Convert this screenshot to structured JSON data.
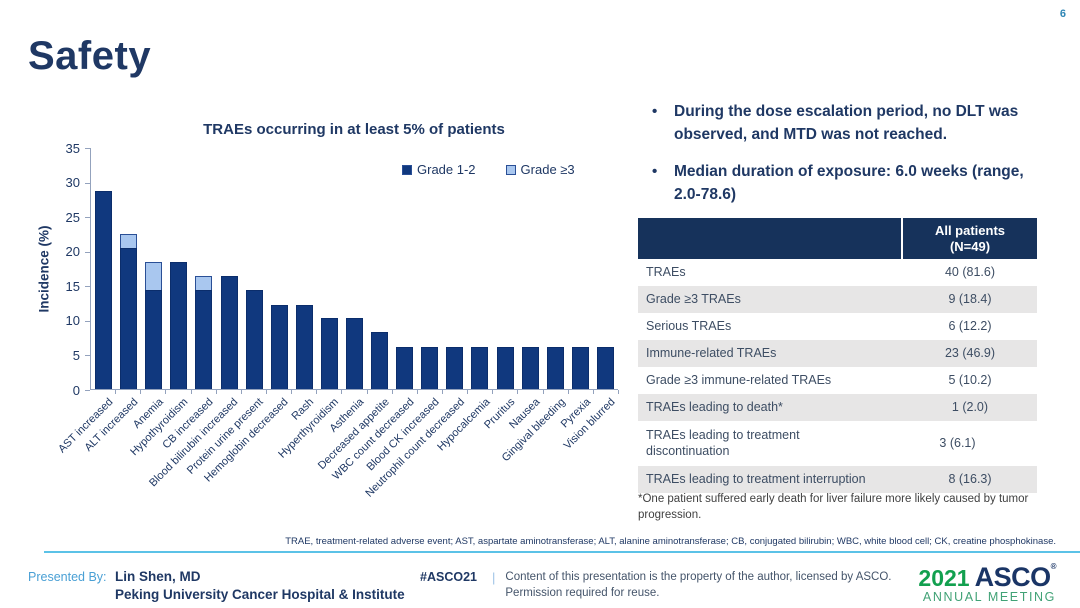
{
  "page_number": "6",
  "title": "Safety",
  "chart_data": {
    "type": "bar",
    "stacked": true,
    "title": "TRAEs occurring in at least 5% of patients",
    "ylabel": "Incidence (%)",
    "ylim": [
      0,
      35
    ],
    "yticks": [
      0,
      5,
      10,
      15,
      20,
      25,
      30,
      35
    ],
    "grid": false,
    "legend_position": "top-right",
    "legend": [
      {
        "name": "Grade 1-2",
        "color": "#10387e"
      },
      {
        "name": "Grade ≥3",
        "color": "#a9c7ef"
      }
    ],
    "categories": [
      "AST increased",
      "ALT increased",
      "Anemia",
      "Hypothyroidism",
      "CB increased",
      "Blood bilirubin increased",
      "Protein urine present",
      "Hemoglobin decreased",
      "Rash",
      "Hyperthyroidism",
      "Asthenia",
      "Decreased appetite",
      "WBC count decreased",
      "Blood CK increased",
      "Neutrophil count decreased",
      "Hypocalcemia",
      "Pruritus",
      "Nausea",
      "Gingival bleeding",
      "Pyrexia",
      "Vision blurred"
    ],
    "series": [
      {
        "name": "Grade 1-2",
        "values": [
          28.6,
          20.4,
          14.3,
          18.4,
          14.3,
          16.3,
          14.3,
          12.2,
          12.2,
          10.2,
          10.2,
          8.2,
          6.1,
          6.1,
          6.1,
          6.1,
          6.1,
          6.1,
          6.1,
          6.1,
          6.1
        ]
      },
      {
        "name": "Grade ≥3",
        "values": [
          0,
          2.0,
          4.1,
          0,
          2.0,
          0,
          0,
          0,
          0,
          0,
          0,
          0,
          0,
          0,
          0,
          0,
          0,
          0,
          0,
          0,
          0
        ]
      }
    ]
  },
  "bullets": [
    "During the dose escalation period, no DLT was observed, and MTD was not reached.",
    "Median duration of exposure: 6.0 weeks (range, 2.0-78.6)"
  ],
  "table": {
    "header": {
      "label": "",
      "value_line1": "All patients",
      "value_line2": "(N=49)"
    },
    "rows": [
      {
        "label": "TRAEs",
        "value": "40 (81.6)"
      },
      {
        "label": "Grade ≥3 TRAEs",
        "value": "9 (18.4)"
      },
      {
        "label": "Serious TRAEs",
        "value": "6 (12.2)"
      },
      {
        "label": "Immune-related TRAEs",
        "value": "23 (46.9)"
      },
      {
        "label": "Grade ≥3 immune-related TRAEs",
        "value": "5 (10.2)"
      },
      {
        "label": "TRAEs leading to death*",
        "value": "1 (2.0)"
      },
      {
        "label": "TRAEs leading to treatment discontinuation",
        "value": "3 (6.1)"
      },
      {
        "label": "TRAEs leading to treatment interruption",
        "value": "8 (16.3)"
      }
    ],
    "footnote": "*One patient suffered early death for liver failure more likely caused by tumor progression."
  },
  "abbreviations": "TRAE, treatment-related adverse event; AST, aspartate aminotransferase; ALT, alanine aminotransferase; CB, conjugated bilirubin; WBC, white blood cell; CK, creatine phosphokinase.",
  "footer": {
    "presented_by_label": "Presented By:",
    "presenter_name": "Lin Shen, MD",
    "presenter_affiliation": "Peking University Cancer Hospital & Institute",
    "hashtag": "#ASCO21",
    "notice_line1": "Content of this presentation is the property of the author, licensed by ASCO.",
    "notice_line2": "Permission required for reuse.",
    "logo_year": "2021",
    "logo_org": "ASCO",
    "logo_reg": "®",
    "logo_sub": "ANNUAL MEETING"
  },
  "colors": {
    "navy": "#1f3864",
    "bar_dark": "#10387e",
    "bar_light": "#a9c7ef",
    "table_header_bg": "#16325b",
    "table_alt_row": "#e7e6e6",
    "rule_blue": "#5bc2e7",
    "accent_light_blue": "#4aa0d5",
    "logo_green": "#12a04f"
  }
}
